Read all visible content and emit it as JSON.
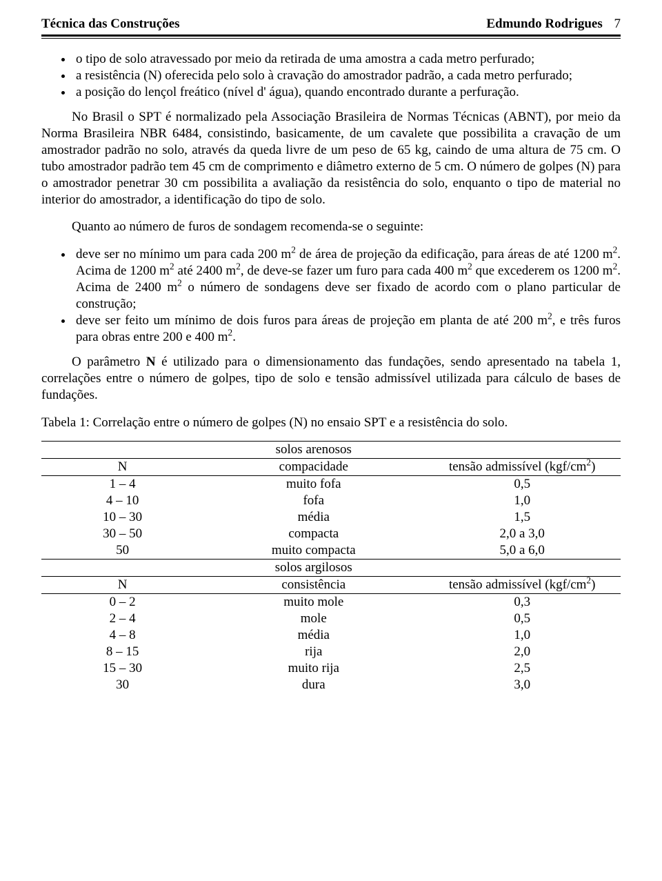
{
  "page": {
    "background": "#ffffff",
    "text_color": "#000000",
    "font_family": "Times New Roman",
    "base_fontsize_pt": 14
  },
  "header": {
    "left": "Técnica das Construções",
    "right": "Edmundo Rodrigues",
    "page_number": "7"
  },
  "bullets_top": [
    "o tipo de solo atravessado por meio da retirada de uma amostra a cada metro perfurado;",
    "a resistência (N) oferecida pelo solo à cravação do amostrador padrão, a cada metro perfurado;",
    "a posição do lençol freático (nível d' água), quando encontrado durante a perfuração."
  ],
  "para1": "No Brasil o SPT é normalizado pela Associação Brasileira de Normas Técnicas (ABNT), por meio da Norma Brasileira NBR 6484, consistindo, basicamente, de um cavalete que possibilita a cravação de um amostrador padrão no solo, através da queda livre de um peso de 65 kg, caindo de uma altura de 75 cm. O tubo amostrador padrão tem 45 cm de comprimento e diâmetro externo de 5 cm. O número de golpes (N) para o amostrador penetrar 30 cm possibilita a avaliação da resistência do solo, enquanto o tipo de material no interior do amostrador, a identificação do tipo de solo.",
  "para2": "Quanto ao número de furos de sondagem recomenda-se o seguinte:",
  "bullets_mid": {
    "b1_part1": "deve ser no mínimo um para cada 200 m",
    "b1_part2": " de área de projeção da edificação, para áreas de até 1200 m",
    "b1_part3": ". Acima de 1200 m",
    "b1_part4": " até 2400 m",
    "b1_part5": ", de deve-se fazer um furo para cada 400 m",
    "b1_part6": " que excederem os 1200 m",
    "b1_part7": ". Acima de 2400 m",
    "b1_part8": " o número de sondagens deve ser fixado de acordo com o plano particular de construção;",
    "b2_part1": "deve ser feito um mínimo de dois furos para áreas de projeção em planta de até 200 m",
    "b2_part2": ", e três furos para obras entre 200 e 400 m",
    "b2_part3": "."
  },
  "sup2": "2",
  "para3_part1": "O parâmetro ",
  "para3_bold": "N",
  "para3_part2": " é utilizado para o dimensionamento das fundações, sendo apresentado na tabela 1, correlações entre o número de golpes, tipo de solo e tensão admissível utilizada para cálculo de bases de fundações.",
  "table_caption": "Tabela 1: Correlação entre o número de golpes (N) no ensaio SPT e a resistência do solo.",
  "table": {
    "section1_title": "solos arenosos",
    "col_n": "N",
    "col_comp": "compacidade",
    "col_tens_part1": "tensão admissível (kgf/cm",
    "col_tens_part2": ")",
    "arenosos_rows": [
      [
        "1 – 4",
        "muito fofa",
        "0,5"
      ],
      [
        "4 – 10",
        "fofa",
        "1,0"
      ],
      [
        "10 – 30",
        "média",
        "1,5"
      ],
      [
        "30 – 50",
        "compacta",
        "2,0 a 3,0"
      ],
      [
        "50",
        "muito compacta",
        "5,0 a 6,0"
      ]
    ],
    "section2_title": "solos argilosos",
    "col_cons": "consistência",
    "argilosos_rows": [
      [
        "0 – 2",
        "muito mole",
        "0,3"
      ],
      [
        "2 – 4",
        "mole",
        "0,5"
      ],
      [
        "4 – 8",
        "média",
        "1,0"
      ],
      [
        "8 – 15",
        "rija",
        "2,0"
      ],
      [
        "15 – 30",
        "muito rija",
        "2,5"
      ],
      [
        "30",
        "dura",
        "3,0"
      ]
    ]
  }
}
